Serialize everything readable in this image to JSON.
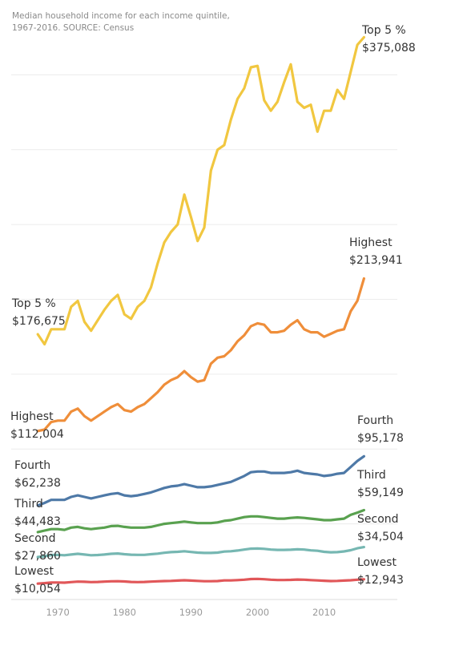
{
  "chart_data": {
    "type": "line",
    "title": "Median household income for each income quintile,",
    "subtitle": "1967-2016. SOURCE: Census",
    "xlabel": "",
    "ylabel": "",
    "xlim": [
      1963,
      2021
    ],
    "ylim": [
      0,
      400000
    ],
    "x_ticks": [
      1970,
      1980,
      1990,
      2000,
      2010
    ],
    "grid": true,
    "x": [
      1967,
      1968,
      1969,
      1970,
      1971,
      1972,
      1973,
      1974,
      1975,
      1976,
      1977,
      1978,
      1979,
      1980,
      1981,
      1982,
      1983,
      1984,
      1985,
      1986,
      1987,
      1988,
      1989,
      1990,
      1991,
      1992,
      1993,
      1994,
      1995,
      1996,
      1997,
      1998,
      1999,
      2000,
      2001,
      2002,
      2003,
      2004,
      2005,
      2006,
      2007,
      2008,
      2009,
      2010,
      2011,
      2012,
      2013,
      2014,
      2015,
      2016
    ],
    "series": [
      {
        "name": "Top 5 %",
        "color": "#f1c740",
        "start_label": "Top 5 %",
        "start_value": "$176,675",
        "end_label": "Top 5 %",
        "end_value": "$375,088",
        "values": [
          176675,
          170000,
          180000,
          180000,
          180000,
          195000,
          199000,
          185000,
          179000,
          186000,
          193000,
          199000,
          203000,
          190000,
          187000,
          195000,
          199000,
          208000,
          224000,
          238000,
          245000,
          250000,
          270000,
          255000,
          239000,
          248000,
          286000,
          300000,
          303000,
          320000,
          334000,
          341000,
          355000,
          356000,
          333000,
          326000,
          332000,
          345000,
          357000,
          332000,
          328000,
          330000,
          312000,
          326000,
          326000,
          340000,
          334000,
          352000,
          370000,
          375088
        ]
      },
      {
        "name": "Highest",
        "color": "#ef8e3a",
        "start_label": "Highest",
        "start_value": "$112,004",
        "end_label": "Highest",
        "end_value": "$213,941",
        "values": [
          112004,
          113000,
          118000,
          119000,
          119000,
          125000,
          127000,
          122000,
          119000,
          122000,
          125000,
          128000,
          130000,
          126000,
          125000,
          128000,
          130000,
          134000,
          138000,
          143000,
          146000,
          148000,
          152000,
          148000,
          145000,
          146000,
          157000,
          161000,
          162000,
          166000,
          172000,
          176000,
          182000,
          184000,
          183000,
          178000,
          178000,
          179000,
          183000,
          186000,
          180000,
          178000,
          178000,
          175000,
          177000,
          179000,
          180000,
          192000,
          199000,
          213941
        ]
      },
      {
        "name": "Fourth",
        "color": "#4e79a7",
        "start_label": "Fourth",
        "start_value": "$62,238",
        "end_label": "Fourth",
        "end_value": "$95,178",
        "values": [
          62238,
          64000,
          66000,
          66000,
          66000,
          68000,
          69000,
          68000,
          67000,
          68000,
          69000,
          70000,
          70500,
          69000,
          68500,
          69000,
          70000,
          71000,
          72500,
          74000,
          75000,
          75500,
          76500,
          75500,
          74500,
          74500,
          75000,
          76000,
          77000,
          78000,
          80000,
          82000,
          84500,
          85000,
          85000,
          84000,
          84000,
          84000,
          84500,
          85500,
          84000,
          83500,
          83000,
          82000,
          82500,
          83500,
          84000,
          88000,
          92000,
          95178
        ]
      },
      {
        "name": "Third",
        "color": "#59a14f",
        "start_label": "Third",
        "start_value": "$44,483",
        "end_label": "Third",
        "end_value": "$59,149",
        "values": [
          44483,
          45500,
          46500,
          46500,
          46000,
          47500,
          48000,
          47000,
          46500,
          47000,
          47500,
          48500,
          48700,
          48000,
          47500,
          47500,
          47500,
          48000,
          49000,
          50000,
          50500,
          51000,
          51500,
          51000,
          50500,
          50500,
          50500,
          51000,
          52000,
          52500,
          53500,
          54500,
          55000,
          55000,
          54500,
          54000,
          53500,
          53500,
          54000,
          54300,
          54000,
          53500,
          53000,
          52500,
          52500,
          53000,
          53500,
          56000,
          57500,
          59149
        ]
      },
      {
        "name": "Second",
        "color": "#76b7b2",
        "start_label": "Second",
        "start_value": "$27,860",
        "end_label": "Second",
        "end_value": "$34,504",
        "values": [
          27860,
          28300,
          29200,
          29300,
          29000,
          29500,
          30000,
          29500,
          29000,
          29200,
          29500,
          30000,
          30200,
          29700,
          29400,
          29300,
          29300,
          29700,
          30100,
          30700,
          31100,
          31300,
          31700,
          31200,
          30800,
          30600,
          30600,
          30800,
          31500,
          31700,
          32200,
          32800,
          33400,
          33500,
          33300,
          32800,
          32600,
          32600,
          32700,
          33000,
          32800,
          32300,
          32000,
          31300,
          31000,
          31100,
          31600,
          32400,
          33700,
          34504
        ]
      },
      {
        "name": "Lowest",
        "color": "#e15759",
        "start_label": "Lowest",
        "start_value": "$10,054",
        "end_label": "Lowest",
        "end_value": "$12,943",
        "values": [
          10054,
          10400,
          10800,
          10800,
          10700,
          11100,
          11400,
          11300,
          11100,
          11200,
          11400,
          11600,
          11700,
          11500,
          11200,
          11100,
          11200,
          11400,
          11600,
          11800,
          11900,
          12100,
          12300,
          12100,
          11900,
          11700,
          11700,
          11800,
          12200,
          12200,
          12400,
          12700,
          13100,
          13200,
          13000,
          12700,
          12500,
          12500,
          12600,
          12800,
          12700,
          12400,
          12200,
          12000,
          11800,
          11900,
          12100,
          12300,
          12700,
          12943
        ]
      }
    ]
  }
}
